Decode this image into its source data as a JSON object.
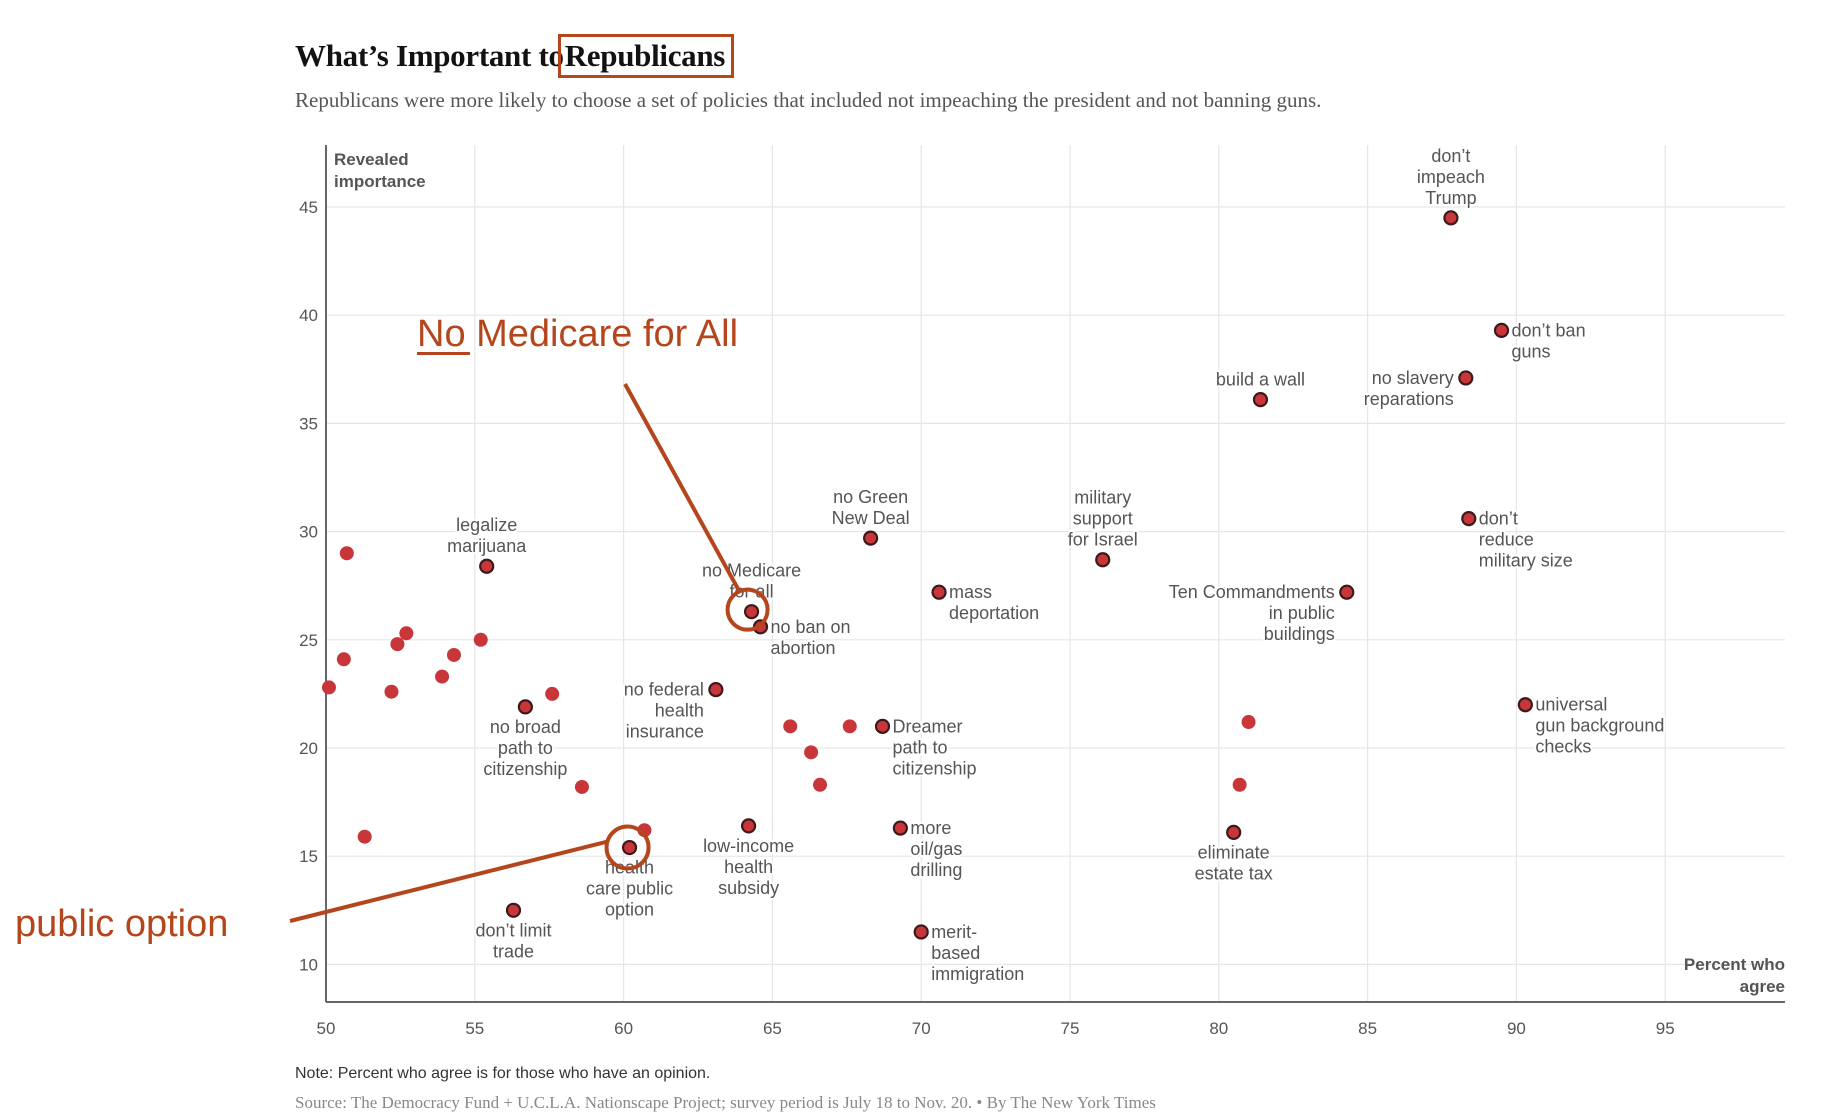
{
  "header": {
    "title_prefix": "What’s Important to",
    "title_highlight": "Republicans",
    "subtitle": "Republicans were more likely to choose a set of policies that included not impeaching the president and not banning guns."
  },
  "footer": {
    "note": "Note: Percent who agree is for those who have an opinion.",
    "source": "Source: The Democracy Fund + U.C.L.A. Nationscape Project; survey period is July 18 to Nov. 20. • By The New York Times"
  },
  "colors": {
    "dot": "#c8363a",
    "dot_outline": "#3a1a1a",
    "annotation": "#b5451b",
    "grid": "#e6e6e6",
    "axis": "#666666",
    "label": "#555555"
  },
  "annotations": [
    {
      "text_underlined": "No",
      "text_rest": " Medicare for All",
      "target": "no Medicare for all"
    },
    {
      "text": "public option",
      "target": "health care public option"
    }
  ],
  "chart_data": {
    "type": "scatter",
    "title": "What’s Important to Republicans",
    "xlabel": "Percent who agree",
    "ylabel": "Revealed importance",
    "xlim": [
      50,
      99
    ],
    "ylim": [
      8.3,
      47.8
    ],
    "xticks": [
      50,
      55,
      60,
      65,
      70,
      75,
      80,
      85,
      90,
      95
    ],
    "yticks": [
      10,
      15,
      20,
      25,
      30,
      35,
      40,
      45
    ],
    "grid": true,
    "points": [
      {
        "label": "don’t impeach Trump",
        "lines": [
          "don’t",
          "impeach",
          "Trump"
        ],
        "x": 87.8,
        "y": 44.5,
        "pos": "above",
        "outlined": true
      },
      {
        "label": "don’t ban guns",
        "lines": [
          "don’t ban",
          "guns"
        ],
        "x": 89.5,
        "y": 39.3,
        "pos": "right",
        "outlined": true
      },
      {
        "label": "no slavery reparations",
        "lines": [
          "no slavery",
          "reparations"
        ],
        "x": 88.3,
        "y": 37.1,
        "pos": "left",
        "outlined": true
      },
      {
        "label": "build a wall",
        "lines": [
          "build a wall"
        ],
        "x": 81.4,
        "y": 36.1,
        "pos": "above",
        "outlined": true
      },
      {
        "label": "don’t reduce military size",
        "lines": [
          "don’t",
          "reduce",
          "military size"
        ],
        "x": 88.4,
        "y": 30.6,
        "pos": "right",
        "outlined": true
      },
      {
        "label": "no Green New Deal",
        "lines": [
          "no Green",
          "New Deal"
        ],
        "x": 68.3,
        "y": 29.7,
        "pos": "above",
        "outlined": true
      },
      {
        "label": "military support for Israel",
        "lines": [
          "military",
          "support",
          "for Israel"
        ],
        "x": 76.1,
        "y": 28.7,
        "pos": "above",
        "outlined": true
      },
      {
        "label": "legalize marijuana",
        "lines": [
          "legalize",
          "marijuana"
        ],
        "x": 55.4,
        "y": 28.4,
        "pos": "above",
        "outlined": true
      },
      {
        "label": "mass deportation",
        "lines": [
          "mass",
          "deportation"
        ],
        "x": 70.6,
        "y": 27.2,
        "pos": "right",
        "outlined": true
      },
      {
        "label": "Ten Commandments in public buildings",
        "lines": [
          "Ten Commandments",
          "in public",
          "buildings"
        ],
        "x": 84.3,
        "y": 27.2,
        "pos": "left",
        "outlined": true
      },
      {
        "label": "no Medicare for all",
        "lines": [
          "no Medicare",
          "for all"
        ],
        "x": 64.3,
        "y": 26.3,
        "pos": "above",
        "outlined": true
      },
      {
        "label": "no ban on abortion",
        "lines": [
          "no ban on",
          "abortion"
        ],
        "x": 64.6,
        "y": 25.6,
        "pos": "right",
        "outlined": true
      },
      {
        "label": "no federal health insurance",
        "lines": [
          "no federal",
          "health",
          "insurance"
        ],
        "x": 63.1,
        "y": 22.7,
        "pos": "left",
        "outlined": true
      },
      {
        "label": "universal gun background checks",
        "lines": [
          "universal",
          "gun background",
          "checks"
        ],
        "x": 90.3,
        "y": 22.0,
        "pos": "right",
        "outlined": true
      },
      {
        "label": "no broad path to citizenship",
        "lines": [
          "no broad",
          "path to",
          "citizenship"
        ],
        "x": 56.7,
        "y": 21.9,
        "pos": "below",
        "outlined": true
      },
      {
        "label": "Dreamer path to citizenship",
        "lines": [
          "Dreamer",
          "path to",
          "citizenship"
        ],
        "x": 68.7,
        "y": 21.0,
        "pos": "right",
        "outlined": true
      },
      {
        "label": "low-income health subsidy",
        "lines": [
          "low-income",
          "health",
          "subsidy"
        ],
        "x": 64.2,
        "y": 16.4,
        "pos": "below",
        "outlined": true
      },
      {
        "label": "more oil/gas drilling",
        "lines": [
          "more",
          "oil/gas",
          "drilling"
        ],
        "x": 69.3,
        "y": 16.3,
        "pos": "right",
        "outlined": true
      },
      {
        "label": "eliminate estate tax",
        "lines": [
          "eliminate",
          "estate tax"
        ],
        "x": 80.5,
        "y": 16.1,
        "pos": "below",
        "outlined": true
      },
      {
        "label": "health care public option",
        "lines": [
          "health",
          "care public",
          "option"
        ],
        "x": 60.2,
        "y": 15.4,
        "pos": "below",
        "outlined": true
      },
      {
        "label": "don’t limit trade",
        "lines": [
          "don’t limit",
          "trade"
        ],
        "x": 56.3,
        "y": 12.5,
        "pos": "below",
        "outlined": true
      },
      {
        "label": "merit-based immigration",
        "lines": [
          "merit-",
          "based",
          "immigration"
        ],
        "x": 70.0,
        "y": 11.5,
        "pos": "right",
        "outlined": true
      },
      {
        "label": "",
        "x": 50.7,
        "y": 29.0,
        "outlined": false
      },
      {
        "label": "",
        "x": 52.7,
        "y": 25.3,
        "outlined": false
      },
      {
        "label": "",
        "x": 52.4,
        "y": 24.8,
        "outlined": false
      },
      {
        "label": "",
        "x": 55.2,
        "y": 25.0,
        "outlined": false
      },
      {
        "label": "",
        "x": 50.6,
        "y": 24.1,
        "outlined": false
      },
      {
        "label": "",
        "x": 54.3,
        "y": 24.3,
        "outlined": false
      },
      {
        "label": "",
        "x": 53.9,
        "y": 23.3,
        "outlined": false
      },
      {
        "label": "",
        "x": 50.1,
        "y": 22.8,
        "outlined": false
      },
      {
        "label": "",
        "x": 52.2,
        "y": 22.6,
        "outlined": false
      },
      {
        "label": "",
        "x": 57.6,
        "y": 22.5,
        "outlined": false
      },
      {
        "label": "",
        "x": 58.6,
        "y": 18.2,
        "outlined": false
      },
      {
        "label": "",
        "x": 51.3,
        "y": 15.9,
        "outlined": false
      },
      {
        "label": "",
        "x": 60.7,
        "y": 16.2,
        "outlined": false
      },
      {
        "label": "",
        "x": 65.6,
        "y": 21.0,
        "outlined": false
      },
      {
        "label": "",
        "x": 67.6,
        "y": 21.0,
        "outlined": false
      },
      {
        "label": "",
        "x": 66.3,
        "y": 19.8,
        "outlined": false
      },
      {
        "label": "",
        "x": 66.6,
        "y": 18.3,
        "outlined": false
      },
      {
        "label": "",
        "x": 81.0,
        "y": 21.2,
        "outlined": false
      },
      {
        "label": "",
        "x": 80.7,
        "y": 18.3,
        "outlined": false
      }
    ]
  }
}
